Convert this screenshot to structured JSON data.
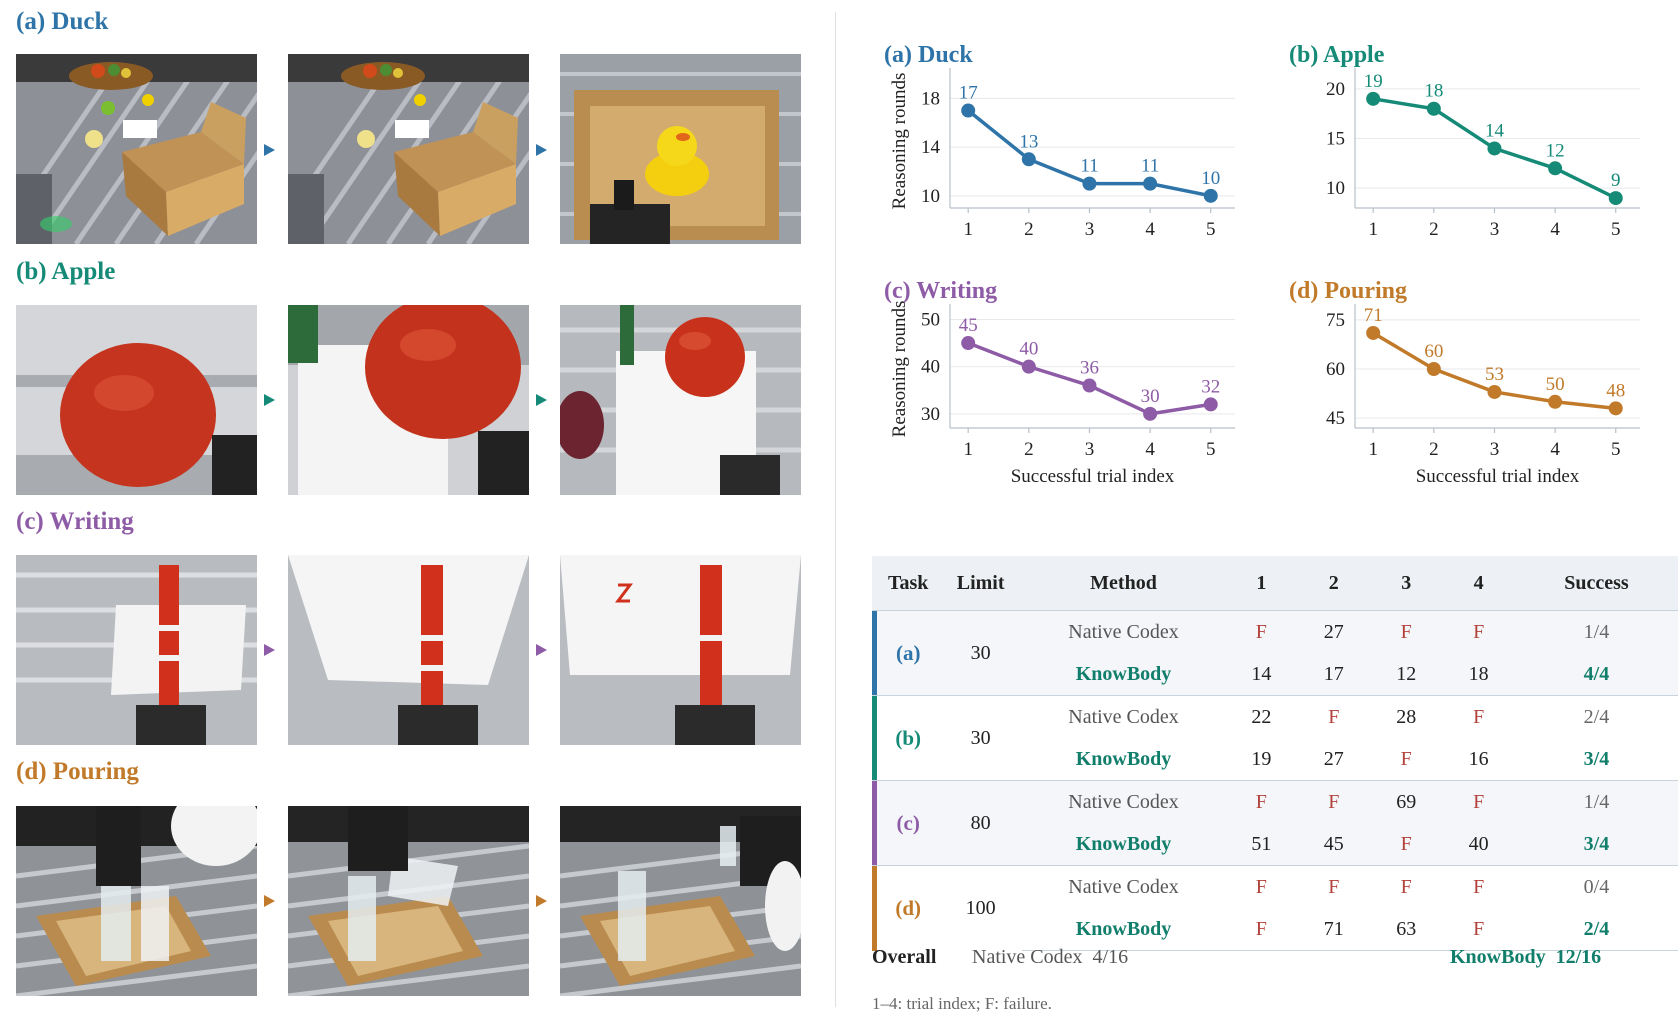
{
  "colors": {
    "duck": "#2e74a8",
    "apple": "#148a77",
    "writing": "#8e5ba6",
    "pouring": "#c17a2a",
    "fail": "#b3413b",
    "knowbody": "#117e6b"
  },
  "left_panel": {
    "tasks": [
      {
        "title": "(a) Duck",
        "photo_icons": [
          "tabletop-scene-photo",
          "tabletop-scene-photo",
          "rubber-duck-in-box-photo"
        ]
      },
      {
        "title": "(b) Apple",
        "photo_icons": [
          "apple-closeup-photo",
          "apple-gripper-photo",
          "apple-placed-photo"
        ]
      },
      {
        "title": "(c) Writing",
        "photo_icons": [
          "marker-photo",
          "marker-paper-photo",
          "marker-writing-photo"
        ]
      },
      {
        "title": "(d) Pouring",
        "photo_icons": [
          "bottle-cup-photo",
          "pouring-photo",
          "bottle-box-photo"
        ]
      }
    ]
  },
  "chart_data": [
    {
      "type": "line",
      "title": "(a) Duck",
      "ylabel": "Reasoning rounds",
      "xlabel": "",
      "x": [
        1,
        2,
        3,
        4,
        5
      ],
      "values": [
        17,
        13,
        11,
        11,
        10
      ],
      "yticks": [
        10,
        14,
        18
      ],
      "ylim": [
        9,
        20
      ],
      "grid": true
    },
    {
      "type": "line",
      "title": "(b) Apple",
      "ylabel": "",
      "xlabel": "",
      "x": [
        1,
        2,
        3,
        4,
        5
      ],
      "values": [
        19,
        18,
        14,
        12,
        9
      ],
      "yticks": [
        10,
        15,
        20
      ],
      "ylim": [
        8,
        21.5
      ],
      "grid": true
    },
    {
      "type": "line",
      "title": "(c) Writing",
      "ylabel": "Reasoning rounds",
      "xlabel": "Successful trial index",
      "x": [
        1,
        2,
        3,
        4,
        5
      ],
      "values": [
        45,
        40,
        36,
        30,
        32
      ],
      "yticks": [
        30,
        40,
        50
      ],
      "ylim": [
        27,
        52
      ],
      "grid": true
    },
    {
      "type": "line",
      "title": "(d) Pouring",
      "ylabel": "",
      "xlabel": "Successful trial index",
      "x": [
        1,
        2,
        3,
        4,
        5
      ],
      "values": [
        71,
        60,
        53,
        50,
        48
      ],
      "yticks": [
        45,
        60,
        75
      ],
      "ylim": [
        42,
        78
      ],
      "grid": true
    }
  ],
  "table": {
    "headers": [
      "Task",
      "Limit",
      "Method",
      "1",
      "2",
      "3",
      "4",
      "Success"
    ],
    "groups": [
      {
        "task": "(a)",
        "limit": "30",
        "native": [
          "F",
          "27",
          "F",
          "F"
        ],
        "native_success": "1/4",
        "knowbody": [
          "14",
          "17",
          "12",
          "18"
        ],
        "knowbody_success": "4/4"
      },
      {
        "task": "(b)",
        "limit": "30",
        "native": [
          "22",
          "F",
          "28",
          "F"
        ],
        "native_success": "2/4",
        "knowbody": [
          "19",
          "27",
          "F",
          "16"
        ],
        "knowbody_success": "3/4"
      },
      {
        "task": "(c)",
        "limit": "80",
        "native": [
          "F",
          "F",
          "69",
          "F"
        ],
        "native_success": "1/4",
        "knowbody": [
          "51",
          "45",
          "F",
          "40"
        ],
        "knowbody_success": "3/4"
      },
      {
        "task": "(d)",
        "limit": "100",
        "native": [
          "F",
          "F",
          "F",
          "F"
        ],
        "native_success": "0/4",
        "knowbody": [
          "F",
          "71",
          "63",
          "F"
        ],
        "knowbody_success": "2/4"
      }
    ],
    "method_native": "Native Codex",
    "method_knowbody": "KnowBody",
    "overall": {
      "label": "Overall",
      "native": "Native Codex  4/16",
      "knowbody": "KnowBody  12/16"
    },
    "note": "1–4: trial index; F: failure."
  }
}
